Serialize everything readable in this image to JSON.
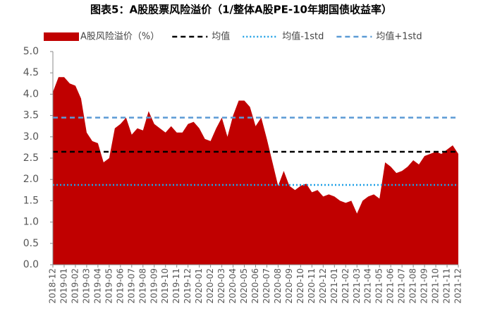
{
  "chart_data": {
    "type": "area",
    "title": "图表5：A股股票风险溢价（1/整体A股PE-10年期国债收益率）",
    "categories": [
      "2018-12",
      null,
      "2019-01",
      null,
      "2019-02",
      null,
      "2019-03",
      null,
      "2019-04",
      null,
      "2019-05",
      null,
      "2019-06",
      null,
      "2019-07",
      null,
      "2019-08",
      null,
      "2019-09",
      null,
      "2019-10",
      null,
      "2019-11",
      null,
      "2019-12",
      null,
      "2020-01",
      null,
      "2020-02",
      null,
      "2020-03",
      null,
      "2020-04",
      null,
      "2020-05",
      null,
      "2020-06",
      null,
      "2020-07",
      null,
      "2020-08",
      null,
      "2020-09",
      null,
      "2020-10",
      null,
      "2020-11",
      null,
      "2020-12",
      null,
      "2021-01",
      null,
      "2021-02",
      null,
      "2021-03",
      null,
      "2021-04",
      null,
      "2021-05",
      null,
      "2021-06",
      null,
      "2021-07",
      null,
      "2021-08",
      null,
      "2021-09",
      null,
      "2021-10",
      null,
      "2021-11",
      null,
      "2021-12"
    ],
    "series": [
      {
        "name": "A股风险溢价（%）",
        "color": "#c00000",
        "values": [
          4.05,
          4.4,
          4.4,
          4.25,
          4.2,
          3.9,
          3.1,
          2.9,
          2.85,
          2.4,
          2.5,
          3.2,
          3.3,
          3.45,
          3.05,
          3.2,
          3.15,
          3.6,
          3.3,
          3.2,
          3.1,
          3.25,
          3.1,
          3.1,
          3.3,
          3.35,
          3.2,
          2.95,
          2.9,
          3.2,
          3.45,
          3.0,
          3.5,
          3.85,
          3.85,
          3.7,
          3.25,
          3.45,
          2.95,
          2.4,
          1.85,
          2.2,
          1.85,
          1.75,
          1.85,
          1.9,
          1.7,
          1.75,
          1.6,
          1.65,
          1.6,
          1.5,
          1.45,
          1.5,
          1.2,
          1.5,
          1.6,
          1.65,
          1.55,
          2.4,
          2.3,
          2.15,
          2.2,
          2.3,
          2.45,
          2.35,
          2.55,
          2.6,
          2.65,
          2.6,
          2.7,
          2.8,
          2.6
        ]
      }
    ],
    "reference_lines": [
      {
        "name": "均值",
        "color": "#000000",
        "style": "dashed",
        "value": 2.65
      },
      {
        "name": "均值-1std",
        "color": "#1ea0e6",
        "style": "dotted",
        "value": 1.87
      },
      {
        "name": "均值+1std",
        "color": "#5b9bd5",
        "style": "dashed",
        "value": 3.45
      }
    ],
    "ylim": [
      0,
      5
    ],
    "yticks": [
      {
        "value": 0,
        "label": "0.0"
      },
      {
        "value": 0.5,
        "label": "0.5"
      },
      {
        "value": 1,
        "label": "1.0"
      },
      {
        "value": 1.5,
        "label": "1.5"
      },
      {
        "value": 2,
        "label": "2.0"
      },
      {
        "value": 2.5,
        "label": "2.5"
      },
      {
        "value": 3,
        "label": "3.0"
      },
      {
        "value": 3.5,
        "label": "3.5"
      },
      {
        "value": 4,
        "label": "4.0"
      },
      {
        "value": 4.5,
        "label": "4.5"
      },
      {
        "value": 5,
        "label": "5.0"
      }
    ]
  }
}
